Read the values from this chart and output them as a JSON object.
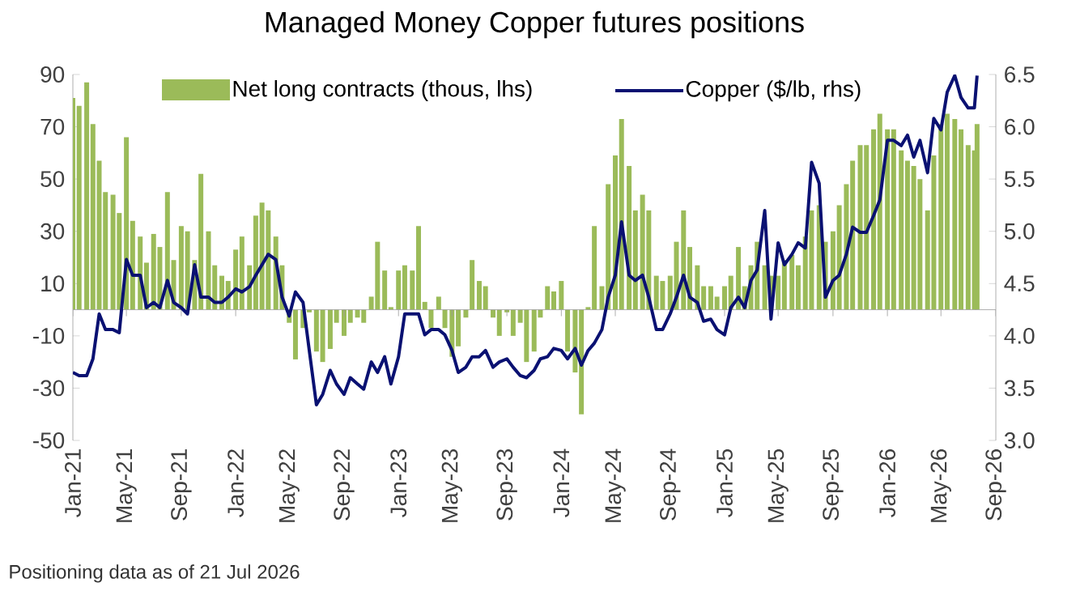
{
  "chart_data": {
    "type": "bar",
    "title": "Managed Money Copper futures positions",
    "annotations": [
      "Positioning data as of 21 Jul 2026"
    ],
    "xlim": [
      "2021-01-01",
      "2026-09-01"
    ],
    "xticks": [
      {
        "value": "2021-01-01",
        "label": "Jan-21"
      },
      {
        "value": "2021-05-01",
        "label": "May-21"
      },
      {
        "value": "2021-09-01",
        "label": "Sep-21"
      },
      {
        "value": "2022-01-01",
        "label": "Jan-22"
      },
      {
        "value": "2022-05-01",
        "label": "May-22"
      },
      {
        "value": "2022-09-01",
        "label": "Sep-22"
      },
      {
        "value": "2023-01-01",
        "label": "Jan-23"
      },
      {
        "value": "2023-05-01",
        "label": "May-23"
      },
      {
        "value": "2023-09-01",
        "label": "Sep-23"
      },
      {
        "value": "2024-01-01",
        "label": "Jan-24"
      },
      {
        "value": "2024-05-01",
        "label": "May-24"
      },
      {
        "value": "2024-09-01",
        "label": "Sep-24"
      },
      {
        "value": "2025-01-01",
        "label": "Jan-25"
      },
      {
        "value": "2025-05-01",
        "label": "May-25"
      },
      {
        "value": "2025-09-01",
        "label": "Sep-25"
      },
      {
        "value": "2026-01-01",
        "label": "Jan-26"
      },
      {
        "value": "2026-05-01",
        "label": "May-26"
      },
      {
        "value": "2026-09-01",
        "label": "Sep-26"
      }
    ],
    "ylim": [
      -50,
      90
    ],
    "yticks": [
      -50,
      -30,
      -10,
      10,
      30,
      50,
      70,
      90
    ],
    "y2lim": [
      3.0,
      6.5
    ],
    "y2ticks": [
      {
        "value": 3,
        "label": "3.0"
      },
      3.5,
      {
        "value": 4,
        "label": "4.0"
      },
      4.5,
      {
        "value": 5,
        "label": "5.0"
      },
      5.5,
      {
        "value": 6,
        "label": "6.0"
      },
      6.5
    ],
    "legend": "top",
    "series": [
      {
        "name": "Net long contracts (thous, lhs)",
        "color": "#9bbb59",
        "values": [
          81,
          78,
          87,
          71,
          57,
          45,
          44,
          37,
          66,
          34,
          28,
          18,
          29,
          24,
          45,
          19,
          32,
          30,
          19,
          52,
          30,
          17,
          13,
          11,
          23,
          28,
          17,
          36,
          41,
          38,
          28,
          17,
          -5,
          -19,
          -7,
          -1,
          -16,
          -20,
          -15,
          -5,
          -10,
          -5,
          -3,
          -5,
          5,
          26,
          15,
          1,
          15,
          17,
          15,
          32,
          3,
          -7,
          5,
          -7,
          -18,
          -14,
          -3,
          19,
          11,
          9,
          -3,
          -10,
          -1,
          -10,
          -5,
          -20,
          -16,
          -3,
          9,
          7,
          11,
          -16,
          -24,
          -40,
          1,
          32,
          9,
          48,
          59,
          73,
          55,
          38,
          44,
          38,
          13,
          11,
          13,
          26,
          38,
          24,
          17,
          9,
          9,
          5,
          9,
          13,
          24,
          9,
          17,
          26,
          17,
          13,
          13,
          19,
          21,
          17,
          28,
          38,
          40,
          26,
          30,
          40,
          48,
          57,
          63,
          63,
          69,
          75,
          69,
          69,
          61,
          57,
          55,
          50,
          38,
          59,
          71,
          75,
          73,
          69,
          63,
          61,
          71
        ]
      },
      {
        "name": "Copper ($/lb, rhs)",
        "type": "line",
        "axis": "y2",
        "color": "#0a1172",
        "values": [
          3.65,
          3.62,
          3.62,
          3.78,
          4.21,
          4.06,
          4.06,
          4.03,
          4.73,
          4.58,
          4.58,
          4.27,
          4.32,
          4.27,
          4.53,
          4.32,
          4.27,
          4.21,
          4.68,
          4.37,
          4.37,
          4.32,
          4.32,
          4.37,
          4.45,
          4.42,
          4.47,
          4.58,
          4.68,
          4.78,
          4.73,
          4.37,
          4.19,
          4.42,
          4.32,
          3.86,
          3.34,
          3.44,
          3.67,
          3.54,
          3.44,
          3.6,
          3.54,
          3.49,
          3.75,
          3.65,
          3.8,
          3.54,
          3.8,
          4.21,
          4.21,
          4.21,
          4.01,
          4.06,
          4.06,
          4.01,
          3.86,
          3.65,
          3.7,
          3.8,
          3.8,
          3.86,
          3.7,
          3.75,
          3.78,
          3.7,
          3.62,
          3.6,
          3.67,
          3.78,
          3.8,
          3.88,
          3.86,
          3.78,
          3.88,
          3.72,
          3.86,
          3.93,
          4.06,
          4.37,
          4.58,
          5.09,
          4.58,
          4.53,
          4.58,
          4.37,
          4.06,
          4.06,
          4.21,
          4.37,
          4.58,
          4.37,
          4.32,
          4.14,
          4.16,
          4.06,
          4.01,
          4.27,
          4.37,
          4.27,
          4.53,
          4.63,
          5.2,
          4.16,
          4.89,
          4.68,
          4.78,
          4.89,
          4.84,
          5.66,
          5.46,
          4.37,
          4.53,
          4.58,
          4.78,
          5.04,
          4.99,
          4.99,
          5.15,
          5.3,
          5.87,
          5.87,
          5.82,
          5.92,
          5.71,
          5.87,
          5.56,
          6.08,
          5.97,
          6.33,
          6.49,
          6.28,
          6.18,
          6.18,
          6.49
        ]
      }
    ],
    "x": [
      "2021-01-01",
      "2021-01-15",
      "2021-02-01",
      "2021-02-15",
      "2021-03-01",
      "2021-03-15",
      "2021-04-01",
      "2021-04-15",
      "2021-05-01",
      "2021-05-15",
      "2021-06-01",
      "2021-06-15",
      "2021-07-01",
      "2021-07-15",
      "2021-08-01",
      "2021-08-15",
      "2021-09-01",
      "2021-09-15",
      "2021-10-01",
      "2021-10-15",
      "2021-11-01",
      "2021-11-15",
      "2021-12-01",
      "2021-12-15",
      "2022-01-01",
      "2022-01-15",
      "2022-02-01",
      "2022-02-15",
      "2022-03-01",
      "2022-03-15",
      "2022-04-01",
      "2022-04-15",
      "2022-05-01",
      "2022-05-15",
      "2022-06-01",
      "2022-06-15",
      "2022-07-01",
      "2022-07-15",
      "2022-08-01",
      "2022-08-15",
      "2022-09-01",
      "2022-09-15",
      "2022-10-01",
      "2022-10-15",
      "2022-11-01",
      "2022-11-15",
      "2022-12-01",
      "2022-12-15",
      "2023-01-01",
      "2023-01-15",
      "2023-02-01",
      "2023-02-15",
      "2023-03-01",
      "2023-03-15",
      "2023-04-01",
      "2023-04-15",
      "2023-05-01",
      "2023-05-15",
      "2023-06-01",
      "2023-06-15",
      "2023-07-01",
      "2023-07-15",
      "2023-08-01",
      "2023-08-15",
      "2023-09-01",
      "2023-09-15",
      "2023-10-01",
      "2023-10-15",
      "2023-11-01",
      "2023-11-15",
      "2023-12-01",
      "2023-12-15",
      "2024-01-01",
      "2024-01-15",
      "2024-02-01",
      "2024-02-15",
      "2024-03-01",
      "2024-03-15",
      "2024-04-01",
      "2024-04-15",
      "2024-05-01",
      "2024-05-15",
      "2024-06-01",
      "2024-06-15",
      "2024-07-01",
      "2024-07-15",
      "2024-08-01",
      "2024-08-15",
      "2024-09-01",
      "2024-09-15",
      "2024-10-01",
      "2024-10-15",
      "2024-11-01",
      "2024-11-15",
      "2024-12-01",
      "2024-12-15",
      "2025-01-01",
      "2025-01-15",
      "2025-02-01",
      "2025-02-15",
      "2025-03-01",
      "2025-03-15",
      "2025-04-01",
      "2025-04-15",
      "2025-05-01",
      "2025-05-15",
      "2025-06-01",
      "2025-06-15",
      "2025-07-01",
      "2025-07-15",
      "2025-08-01",
      "2025-08-15",
      "2025-09-01",
      "2025-09-15",
      "2025-10-01",
      "2025-10-15",
      "2025-11-01",
      "2025-11-15",
      "2025-12-01",
      "2025-12-15",
      "2026-01-01",
      "2026-01-15",
      "2026-02-01",
      "2026-02-15",
      "2026-03-01",
      "2026-03-15",
      "2026-04-01",
      "2026-04-15",
      "2026-05-01",
      "2026-05-15",
      "2026-06-01",
      "2026-06-15",
      "2026-07-01",
      "2026-07-15",
      "2026-07-21"
    ]
  }
}
